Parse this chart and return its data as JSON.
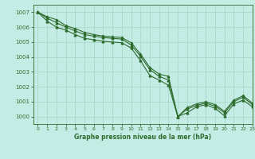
{
  "title": "Graphe pression niveau de la mer (hPa)",
  "bg_color": "#c5ece4",
  "grid_color": "#a8d8cc",
  "line_color": "#2d6b2d",
  "xlim": [
    -0.5,
    23
  ],
  "ylim": [
    999.5,
    1007.5
  ],
  "yticks": [
    1000,
    1001,
    1002,
    1003,
    1004,
    1005,
    1006,
    1007
  ],
  "xticks": [
    0,
    1,
    2,
    3,
    4,
    5,
    6,
    7,
    8,
    9,
    10,
    11,
    12,
    13,
    14,
    15,
    16,
    17,
    18,
    19,
    20,
    21,
    22,
    23
  ],
  "series1": [
    1007.0,
    1006.7,
    1006.5,
    1006.1,
    1005.9,
    1005.65,
    1005.5,
    1005.4,
    1005.35,
    1005.3,
    1004.95,
    1004.2,
    1003.3,
    1002.85,
    1002.7,
    1000.0,
    1000.6,
    1000.85,
    1001.0,
    1000.8,
    1000.35,
    1001.1,
    1001.4,
    1000.9
  ],
  "series2": [
    1007.0,
    1006.6,
    1006.3,
    1006.0,
    1005.75,
    1005.5,
    1005.4,
    1005.3,
    1005.25,
    1005.2,
    1004.8,
    1004.05,
    1003.15,
    1002.7,
    1002.45,
    1000.0,
    1000.5,
    1000.75,
    1000.9,
    1000.7,
    1000.25,
    1001.0,
    1001.3,
    1000.8
  ],
  "series3": [
    1007.0,
    1006.4,
    1006.0,
    1005.8,
    1005.5,
    1005.25,
    1005.15,
    1005.05,
    1005.0,
    1004.95,
    1004.6,
    1003.75,
    1002.75,
    1002.45,
    1002.1,
    1000.0,
    1000.25,
    1000.65,
    1000.8,
    1000.55,
    1000.05,
    1000.85,
    1001.1,
    1000.65
  ]
}
